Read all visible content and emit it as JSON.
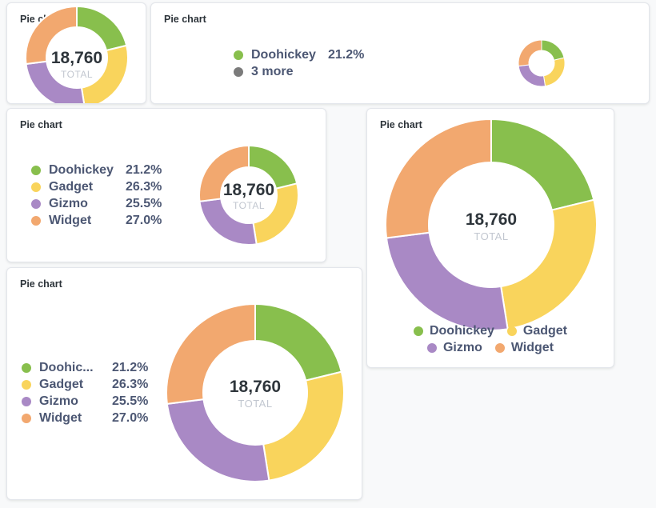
{
  "colors": {
    "doohickey": "#88bf4d",
    "gadget": "#f9d45c",
    "gizmo": "#a989c5",
    "widget": "#f2a86f",
    "more": "#7b7b7b"
  },
  "chart_data": {
    "type": "pie",
    "title": "Pie chart",
    "categories": [
      "Doohickey",
      "Gadget",
      "Gizmo",
      "Widget"
    ],
    "values": [
      21.2,
      26.3,
      25.5,
      27.0
    ],
    "percent_labels": [
      "21.2%",
      "26.3%",
      "25.5%",
      "27.0%"
    ],
    "total": "18,760",
    "total_label": "TOTAL"
  },
  "cards": {
    "c1": {
      "title": "Pie chart"
    },
    "c2": {
      "title": "Pie chart",
      "legend": [
        {
          "label": "Doohickey",
          "pct": "21.2%",
          "color": "#88bf4d"
        },
        {
          "label": "3 more",
          "pct": "",
          "color": "#7b7b7b"
        }
      ]
    },
    "c3": {
      "title": "Pie chart"
    },
    "c4": {
      "title": "Pie chart"
    },
    "c5": {
      "title": "Pie chart",
      "truncated_first_label": "Doohic..."
    }
  }
}
